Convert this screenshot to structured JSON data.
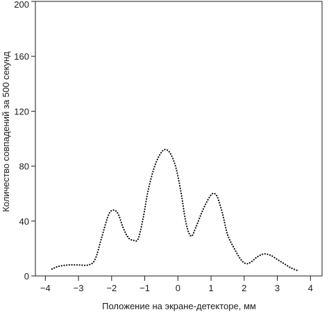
{
  "chart_data": {
    "type": "line",
    "line_style": "dotted",
    "xlabel": "Положение на экране-детекторе, мм",
    "ylabel": "Количество совпадений за 500 секунд",
    "xlim": [
      -4.3,
      4.35
    ],
    "ylim": [
      0,
      200
    ],
    "grid": false,
    "x_ticks": [
      "−4",
      "−3",
      "−2",
      "−1",
      "0",
      "1",
      "2",
      "3",
      "4"
    ],
    "x_tick_values": [
      -4,
      -3,
      -2,
      -1,
      0,
      1,
      2,
      3,
      4
    ],
    "y_ticks": [
      "0",
      "40",
      "80",
      "120",
      "160",
      "200"
    ],
    "y_tick_values": [
      0,
      40,
      80,
      120,
      160,
      200
    ],
    "series": [
      {
        "x": [
          -3.8,
          -3.6,
          -3.3,
          -3.0,
          -2.7,
          -2.5,
          -2.3,
          -2.1,
          -1.95,
          -1.8,
          -1.65,
          -1.5,
          -1.35,
          -1.2,
          -1.05,
          -0.9,
          -0.7,
          -0.5,
          -0.35,
          -0.2,
          -0.05,
          0.1,
          0.25,
          0.4,
          0.55,
          0.7,
          0.85,
          1.0,
          1.1,
          1.2,
          1.35,
          1.5,
          1.7,
          1.9,
          2.05,
          2.2,
          2.4,
          2.6,
          2.8,
          3.0,
          3.2,
          3.4,
          3.6
        ],
        "y": [
          5,
          7,
          8,
          8,
          8,
          12,
          28,
          44,
          48,
          45,
          35,
          28,
          26,
          27,
          42,
          62,
          80,
          90,
          92,
          88,
          78,
          60,
          38,
          29,
          36,
          45,
          53,
          59,
          60,
          57,
          45,
          30,
          20,
          12,
          9,
          10,
          14,
          16,
          15,
          12,
          9,
          6,
          4
        ]
      }
    ]
  }
}
